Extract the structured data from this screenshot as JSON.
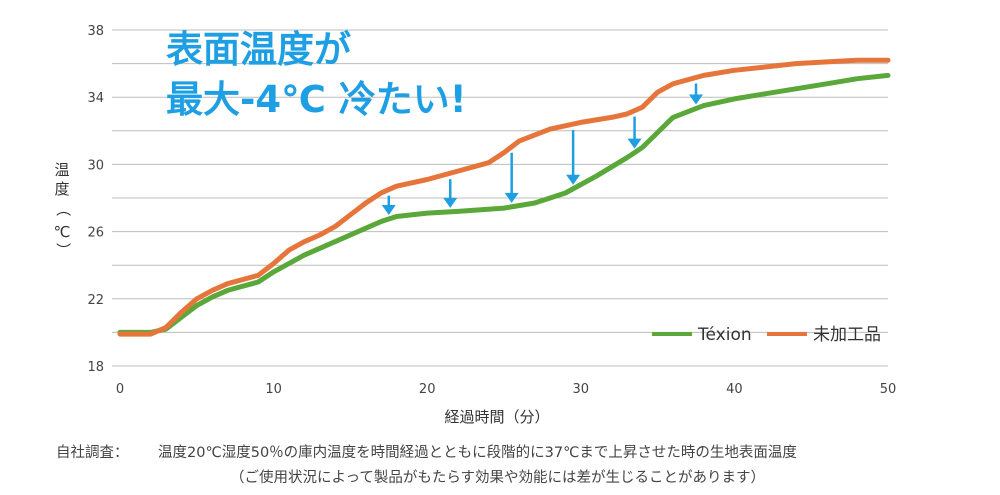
{
  "headline": {
    "line1": "表面温度が",
    "line2": "最大-4℃ 冷たい!"
  },
  "chart_data": {
    "type": "line",
    "xlabel": "経過時間（分）",
    "ylabel": [
      "温",
      "度",
      "（",
      "℃",
      "）"
    ],
    "xlim": [
      0,
      50
    ],
    "ylim": [
      18,
      38
    ],
    "xticks": [
      0,
      10,
      20,
      30,
      40,
      50
    ],
    "yticks": [
      18,
      22,
      26,
      30,
      34,
      38
    ],
    "grid": "horizontal",
    "legend_position": "bottom-right",
    "series": [
      {
        "name": "Téxion",
        "color": "#5aa83a",
        "points": [
          [
            0,
            20.0
          ],
          [
            2,
            20.0
          ],
          [
            3,
            20.2
          ],
          [
            4,
            20.9
          ],
          [
            5,
            21.6
          ],
          [
            6,
            22.1
          ],
          [
            7,
            22.5
          ],
          [
            9,
            23.0
          ],
          [
            10,
            23.6
          ],
          [
            12,
            24.6
          ],
          [
            14,
            25.4
          ],
          [
            16,
            26.2
          ],
          [
            17,
            26.6
          ],
          [
            18,
            26.9
          ],
          [
            20,
            27.1
          ],
          [
            22,
            27.2
          ],
          [
            25,
            27.4
          ],
          [
            27,
            27.7
          ],
          [
            29,
            28.3
          ],
          [
            31,
            29.3
          ],
          [
            33,
            30.4
          ],
          [
            34,
            31.0
          ],
          [
            35,
            31.9
          ],
          [
            36,
            32.8
          ],
          [
            38,
            33.5
          ],
          [
            40,
            33.9
          ],
          [
            42,
            34.2
          ],
          [
            44,
            34.5
          ],
          [
            46,
            34.8
          ],
          [
            48,
            35.1
          ],
          [
            50,
            35.3
          ]
        ]
      },
      {
        "name": "未加工品",
        "color": "#e6753b",
        "points": [
          [
            0,
            19.9
          ],
          [
            2,
            19.9
          ],
          [
            3,
            20.3
          ],
          [
            4,
            21.2
          ],
          [
            5,
            22.0
          ],
          [
            6,
            22.5
          ],
          [
            7,
            22.9
          ],
          [
            9,
            23.4
          ],
          [
            10,
            24.1
          ],
          [
            11,
            24.9
          ],
          [
            12,
            25.4
          ],
          [
            13,
            25.8
          ],
          [
            14,
            26.3
          ],
          [
            15,
            27.0
          ],
          [
            16,
            27.7
          ],
          [
            17,
            28.3
          ],
          [
            18,
            28.7
          ],
          [
            20,
            29.1
          ],
          [
            22,
            29.6
          ],
          [
            24,
            30.1
          ],
          [
            25,
            30.7
          ],
          [
            26,
            31.4
          ],
          [
            28,
            32.1
          ],
          [
            30,
            32.5
          ],
          [
            32,
            32.8
          ],
          [
            33,
            33.0
          ],
          [
            34,
            33.4
          ],
          [
            35,
            34.3
          ],
          [
            36,
            34.8
          ],
          [
            38,
            35.3
          ],
          [
            40,
            35.6
          ],
          [
            42,
            35.8
          ],
          [
            44,
            36.0
          ],
          [
            46,
            36.1
          ],
          [
            48,
            36.2
          ],
          [
            50,
            36.2
          ]
        ]
      }
    ],
    "arrows_x": [
      17.5,
      21.5,
      25.5,
      29.5,
      33.5,
      37.5
    ]
  },
  "colors": {
    "headline": "#1f9fe3",
    "arrow": "#1f9fe3",
    "grid": "#bdbdbd"
  },
  "notes": {
    "label": "自社調査：",
    "line1": "温度20℃湿度50％の庫内温度を時間経過とともに段階的に37℃まで上昇させた時の生地表面温度",
    "line2": "（ご使用状況によって製品がもたらす効果や効能には差が生じることがあります）"
  }
}
